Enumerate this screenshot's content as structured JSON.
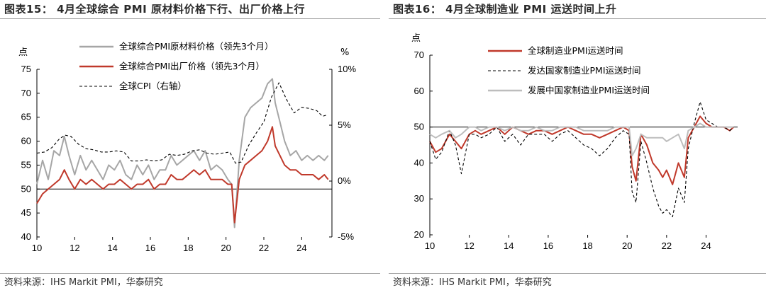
{
  "left": {
    "title": "图表15： 4月全球综合 PMI 原材料价格下行、出厂价格上行",
    "source": "资料来源：IHS Markit PMI，华泰研究",
    "chart_data": {
      "type": "line",
      "left_axis_unit": "点",
      "right_axis_unit": "%",
      "x_ticks": [
        "10",
        "12",
        "14",
        "16",
        "18",
        "20",
        "22",
        "24"
      ],
      "x_range": [
        2010,
        2025.6
      ],
      "y_left": {
        "ticks": [
          40,
          45,
          50,
          55,
          60,
          65,
          70,
          75
        ],
        "range": [
          40,
          75
        ]
      },
      "y_right": {
        "ticks": [
          "-5%",
          "0%",
          "5%",
          "10%"
        ],
        "tick_values": [
          -5,
          0,
          5,
          10
        ],
        "range": [
          -5,
          10
        ]
      },
      "reference_line_left": 50,
      "series": [
        {
          "name": "全球综合PMI原材料价格（领先3个月）",
          "axis": "left",
          "color": "#a6a6a6",
          "x": [
            2010.0,
            2010.3,
            2010.6,
            2010.9,
            2011.2,
            2011.45,
            2011.7,
            2012.0,
            2012.3,
            2012.6,
            2012.9,
            2013.2,
            2013.5,
            2013.8,
            2014.1,
            2014.4,
            2014.7,
            2015.0,
            2015.3,
            2015.6,
            2015.9,
            2016.2,
            2016.5,
            2016.8,
            2017.1,
            2017.4,
            2017.7,
            2018.0,
            2018.3,
            2018.6,
            2018.9,
            2019.2,
            2019.5,
            2019.8,
            2020.1,
            2020.3,
            2020.45,
            2020.7,
            2021.0,
            2021.3,
            2021.6,
            2021.9,
            2022.2,
            2022.45,
            2022.6,
            2022.85,
            2023.1,
            2023.4,
            2023.7,
            2024.0,
            2024.3,
            2024.6,
            2024.9,
            2025.2,
            2025.4
          ],
          "y": [
            51,
            56,
            52,
            58,
            57,
            61,
            57,
            53,
            57,
            54,
            56,
            54,
            52,
            55,
            54,
            56,
            53,
            52,
            55,
            53,
            55,
            52,
            54,
            54,
            57,
            55,
            56,
            57,
            58,
            56,
            58,
            54,
            55,
            54,
            52,
            51,
            42,
            56,
            65,
            67,
            68,
            69,
            72,
            73,
            68,
            64,
            60,
            57,
            58,
            56,
            57,
            56,
            57,
            56,
            57
          ]
        },
        {
          "name": "全球综合PMI出厂价格（领先3个月）",
          "axis": "left",
          "color": "#c0392b",
          "x": [
            2010.0,
            2010.3,
            2010.6,
            2010.9,
            2011.2,
            2011.45,
            2011.7,
            2012.0,
            2012.3,
            2012.6,
            2012.9,
            2013.2,
            2013.5,
            2013.8,
            2014.1,
            2014.4,
            2014.7,
            2015.0,
            2015.3,
            2015.6,
            2015.9,
            2016.2,
            2016.5,
            2016.8,
            2017.1,
            2017.4,
            2017.7,
            2018.0,
            2018.3,
            2018.6,
            2018.9,
            2019.2,
            2019.5,
            2019.8,
            2020.1,
            2020.3,
            2020.45,
            2020.7,
            2021.0,
            2021.3,
            2021.6,
            2021.9,
            2022.2,
            2022.45,
            2022.6,
            2022.85,
            2023.1,
            2023.4,
            2023.7,
            2024.0,
            2024.3,
            2024.6,
            2024.9,
            2025.2,
            2025.4
          ],
          "y": [
            47,
            49,
            50,
            51,
            52,
            54,
            52,
            50,
            52,
            51,
            52,
            51,
            50,
            51,
            51,
            52,
            51,
            50,
            51,
            51,
            52,
            50,
            51,
            51,
            53,
            52,
            52,
            53,
            54,
            53,
            54,
            52,
            52,
            52,
            51,
            51,
            43,
            52,
            55,
            56,
            57,
            58,
            60,
            63,
            59,
            57,
            55,
            54,
            54,
            53,
            53,
            53,
            52,
            53,
            52
          ]
        },
        {
          "name": "全球CPI（右轴）",
          "axis": "right",
          "color": "#000000",
          "dash": "4,3",
          "x": [
            2010.0,
            2010.4,
            2010.8,
            2011.2,
            2011.5,
            2011.8,
            2012.2,
            2012.6,
            2013.0,
            2013.4,
            2013.8,
            2014.2,
            2014.6,
            2015.0,
            2015.4,
            2015.8,
            2016.2,
            2016.6,
            2017.0,
            2017.4,
            2017.8,
            2018.2,
            2018.6,
            2019.0,
            2019.4,
            2019.8,
            2020.2,
            2020.5,
            2020.8,
            2021.2,
            2021.6,
            2022.0,
            2022.4,
            2022.8,
            2023.2,
            2023.6,
            2024.0,
            2024.4,
            2024.8,
            2025.1,
            2025.3
          ],
          "y": [
            2.5,
            2.6,
            3.0,
            3.8,
            4.1,
            4.0,
            3.3,
            2.9,
            2.8,
            2.6,
            2.6,
            2.7,
            2.6,
            1.8,
            1.8,
            1.9,
            1.8,
            1.9,
            2.4,
            2.3,
            2.4,
            2.7,
            2.8,
            2.5,
            2.4,
            2.5,
            2.6,
            1.6,
            1.7,
            3.2,
            4.3,
            5.3,
            7.5,
            8.8,
            7.3,
            6.1,
            6.6,
            6.5,
            6.3,
            5.8,
            5.9
          ]
        }
      ]
    }
  },
  "right": {
    "title": "图表16： 4月全球制造业 PMI 运送时间上升",
    "source": "资料来源：IHS Markit PMI，华泰研究",
    "chart_data": {
      "type": "line",
      "left_axis_unit": "点",
      "x_ticks": [
        "10",
        "12",
        "14",
        "16",
        "18",
        "20",
        "22",
        "24"
      ],
      "x_range": [
        2010,
        2025.6
      ],
      "y_left": {
        "ticks": [
          20,
          30,
          40,
          50,
          60,
          70
        ],
        "range": [
          20,
          70
        ]
      },
      "reference_line_left": 50,
      "series": [
        {
          "name": "全球制造业PMI运送时间",
          "color": "#c0392b",
          "x": [
            2010.0,
            2010.3,
            2010.6,
            2011.0,
            2011.3,
            2011.6,
            2012.0,
            2012.3,
            2012.6,
            2013.0,
            2013.4,
            2013.8,
            2014.2,
            2014.6,
            2015.0,
            2015.4,
            2015.8,
            2016.2,
            2016.6,
            2017.0,
            2017.4,
            2017.8,
            2018.2,
            2018.6,
            2019.0,
            2019.4,
            2019.8,
            2020.1,
            2020.25,
            2020.45,
            2020.7,
            2021.0,
            2021.3,
            2021.6,
            2021.8,
            2022.0,
            2022.3,
            2022.6,
            2022.9,
            2023.1,
            2023.4,
            2023.7,
            2024.0,
            2024.3,
            2024.6,
            2024.9,
            2025.2,
            2025.4
          ],
          "y": [
            46,
            43,
            44,
            48,
            46,
            44,
            48,
            49,
            48,
            49,
            50,
            48,
            50,
            49,
            48,
            49,
            49,
            48,
            49,
            50,
            49,
            48,
            48,
            47,
            48,
            49,
            50,
            49,
            39,
            35,
            48,
            45,
            40,
            38,
            36,
            38,
            34,
            40,
            36,
            47,
            50,
            53,
            51,
            50,
            50,
            50,
            49,
            50
          ]
        },
        {
          "name": "发达国家制造业PMI运送时间",
          "color": "#000000",
          "dash": "4,3",
          "x": [
            2010.0,
            2010.3,
            2010.6,
            2011.0,
            2011.3,
            2011.6,
            2012.0,
            2012.3,
            2012.6,
            2013.0,
            2013.4,
            2013.8,
            2014.2,
            2014.6,
            2015.0,
            2015.4,
            2015.8,
            2016.2,
            2016.6,
            2017.0,
            2017.4,
            2017.8,
            2018.2,
            2018.6,
            2019.0,
            2019.4,
            2019.8,
            2020.1,
            2020.25,
            2020.45,
            2020.7,
            2021.0,
            2021.3,
            2021.6,
            2021.8,
            2022.0,
            2022.3,
            2022.6,
            2022.9,
            2023.1,
            2023.4,
            2023.7,
            2024.0,
            2024.3,
            2024.6,
            2024.9,
            2025.2,
            2025.4
          ],
          "y": [
            46,
            41,
            43,
            49,
            45,
            37,
            48,
            48,
            47,
            48,
            50,
            46,
            48,
            45,
            48,
            48,
            48,
            46,
            48,
            49,
            47,
            45,
            44,
            42,
            44,
            47,
            49,
            48,
            32,
            29,
            46,
            40,
            33,
            28,
            26,
            27,
            25,
            33,
            29,
            44,
            51,
            57,
            52,
            51,
            50,
            50,
            49,
            50
          ]
        },
        {
          "name": "发展中国家制造业PMI运送时间",
          "color": "#bdbdbd",
          "x": [
            2010.0,
            2010.3,
            2010.6,
            2011.0,
            2011.3,
            2011.6,
            2012.0,
            2012.3,
            2012.6,
            2013.0,
            2013.4,
            2013.8,
            2014.2,
            2014.6,
            2015.0,
            2015.4,
            2015.8,
            2016.2,
            2016.6,
            2017.0,
            2017.4,
            2017.8,
            2018.2,
            2018.6,
            2019.0,
            2019.4,
            2019.8,
            2020.1,
            2020.25,
            2020.45,
            2020.7,
            2021.0,
            2021.3,
            2021.6,
            2021.8,
            2022.0,
            2022.3,
            2022.6,
            2022.9,
            2023.1,
            2023.4,
            2023.7,
            2024.0,
            2024.3,
            2024.6,
            2024.9,
            2025.2,
            2025.4
          ],
          "y": [
            48,
            47,
            48,
            49,
            47,
            48,
            50,
            50,
            49,
            50,
            50,
            49,
            50,
            49,
            49,
            50,
            49,
            49,
            50,
            50,
            50,
            49,
            49,
            49,
            49,
            50,
            50,
            50,
            42,
            44,
            48,
            47,
            47,
            47,
            47,
            46,
            47,
            48,
            44,
            49,
            50,
            51,
            50,
            50,
            50,
            50,
            50,
            50
          ]
        }
      ]
    }
  }
}
